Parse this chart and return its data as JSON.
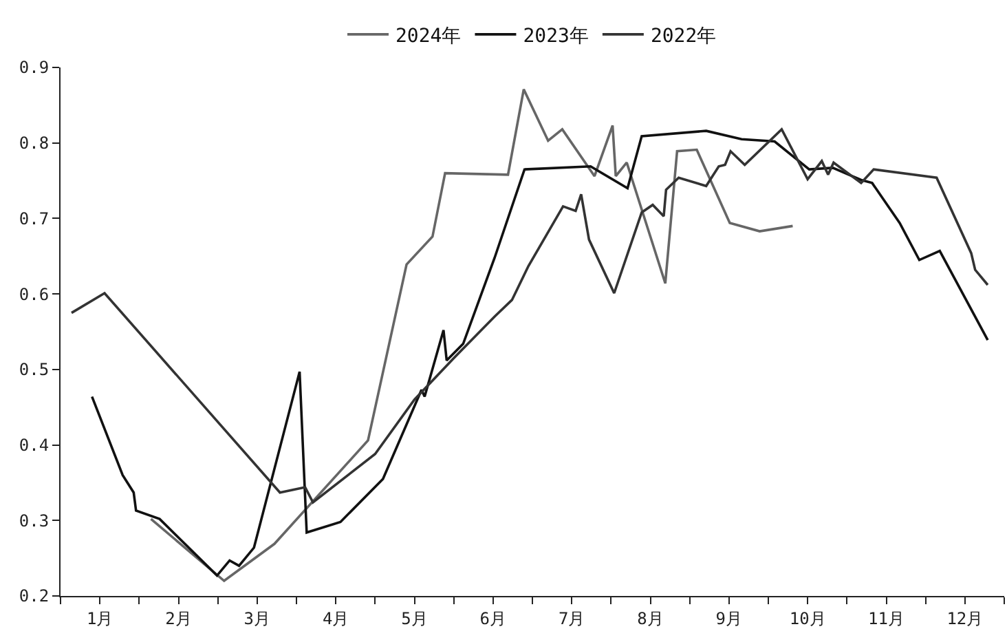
{
  "chart_data": {
    "type": "line",
    "legend": "top",
    "marker": "none",
    "line_style": "solid",
    "grid": false,
    "xlim": [
      0,
      12
    ],
    "xticks": [
      {
        "value": 0,
        "label": null
      },
      {
        "value": 0.5,
        "label": "1月"
      },
      {
        "value": 1,
        "label": null
      },
      {
        "value": 1.5,
        "label": "2月"
      },
      {
        "value": 2,
        "label": null
      },
      {
        "value": 2.5,
        "label": "3月"
      },
      {
        "value": 3,
        "label": null
      },
      {
        "value": 3.5,
        "label": "4月"
      },
      {
        "value": 4,
        "label": null
      },
      {
        "value": 4.5,
        "label": "5月"
      },
      {
        "value": 5,
        "label": null
      },
      {
        "value": 5.5,
        "label": "6月"
      },
      {
        "value": 6,
        "label": null
      },
      {
        "value": 6.5,
        "label": "7月"
      },
      {
        "value": 7,
        "label": null
      },
      {
        "value": 7.5,
        "label": "8月"
      },
      {
        "value": 8,
        "label": null
      },
      {
        "value": 8.5,
        "label": "9月"
      },
      {
        "value": 9,
        "label": null
      },
      {
        "value": 9.5,
        "label": "10月"
      },
      {
        "value": 10,
        "label": null
      },
      {
        "value": 10.5,
        "label": "11月"
      },
      {
        "value": 11,
        "label": null
      },
      {
        "value": 11.5,
        "label": "12月"
      },
      {
        "value": 12,
        "label": null
      }
    ],
    "ylim": [
      0.2,
      0.9
    ],
    "yticks": [
      0.2,
      0.3,
      0.4,
      0.5,
      0.6,
      0.7,
      0.8,
      0.9
    ],
    "series": [
      {
        "name": "2024年",
        "color": "#666666",
        "x": [
          1.15,
          2.08,
          2.72,
          3.91,
          4.4,
          4.73,
          4.89,
          5.69,
          5.89,
          6.2,
          6.38,
          6.79,
          7.02,
          7.06,
          7.2,
          7.69,
          7.84,
          8.09,
          8.51,
          8.89,
          9.31
        ],
        "values": [
          0.302,
          0.22,
          0.269,
          0.406,
          0.639,
          0.676,
          0.76,
          0.758,
          0.871,
          0.803,
          0.818,
          0.756,
          0.823,
          0.756,
          0.774,
          0.614,
          0.789,
          0.791,
          0.694,
          0.683,
          0.69
        ]
      },
      {
        "name": "2023年",
        "color": "#111111",
        "x": [
          0.4,
          0.79,
          0.93,
          0.96,
          1.26,
          1.99,
          2.15,
          2.27,
          2.46,
          3.04,
          3.13,
          3.56,
          4.1,
          4.59,
          4.63,
          4.87,
          4.91,
          5.12,
          5.52,
          5.9,
          6.74,
          7.21,
          7.39,
          8.21,
          8.66,
          9.08,
          9.52,
          9.82,
          10.18,
          10.32,
          10.67,
          10.92,
          11.18,
          11.79
        ],
        "values": [
          0.464,
          0.36,
          0.337,
          0.313,
          0.302,
          0.227,
          0.247,
          0.24,
          0.264,
          0.497,
          0.284,
          0.298,
          0.355,
          0.473,
          0.464,
          0.552,
          0.512,
          0.534,
          0.648,
          0.765,
          0.769,
          0.74,
          0.809,
          0.816,
          0.805,
          0.802,
          0.765,
          0.767,
          0.751,
          0.747,
          0.694,
          0.645,
          0.657,
          0.539
        ]
      },
      {
        "name": "2022年",
        "color": "#333333",
        "x": [
          0.14,
          0.56,
          2.79,
          3.11,
          3.21,
          4.0,
          4.5,
          5.0,
          5.52,
          5.74,
          5.95,
          6.39,
          6.55,
          6.62,
          6.72,
          7.04,
          7.39,
          7.53,
          7.67,
          7.7,
          7.86,
          8.21,
          8.37,
          8.45,
          8.52,
          8.7,
          9.17,
          9.5,
          9.68,
          9.76,
          9.83,
          10.18,
          10.34,
          11.14,
          11.58,
          11.63,
          11.79
        ],
        "values": [
          0.575,
          0.601,
          0.337,
          0.344,
          0.324,
          0.388,
          0.46,
          0.515,
          0.57,
          0.592,
          0.637,
          0.716,
          0.71,
          0.732,
          0.672,
          0.601,
          0.708,
          0.718,
          0.703,
          0.738,
          0.754,
          0.743,
          0.769,
          0.771,
          0.789,
          0.771,
          0.818,
          0.752,
          0.776,
          0.758,
          0.774,
          0.747,
          0.765,
          0.754,
          0.654,
          0.632,
          0.612
        ]
      }
    ]
  }
}
